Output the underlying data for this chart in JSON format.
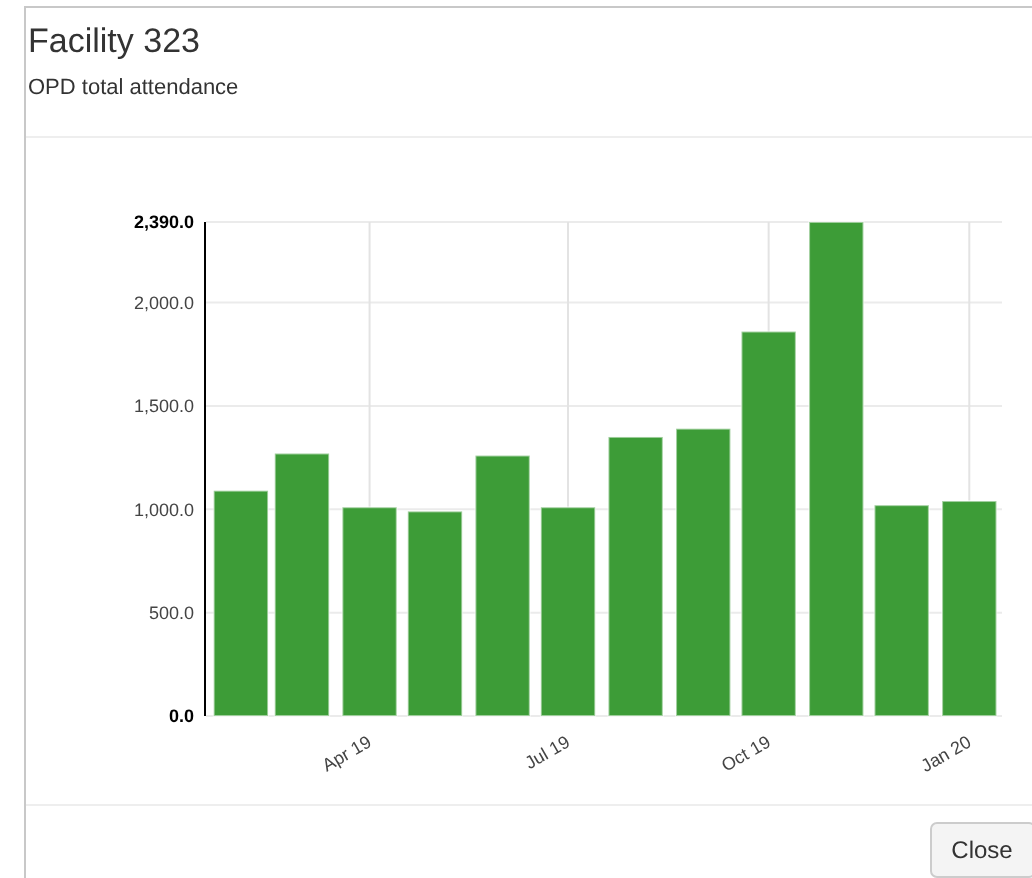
{
  "chart_data": {
    "type": "bar",
    "title": "Facility 323",
    "subtitle": "OPD total attendance",
    "annotations": [
      "Close"
    ],
    "x": [
      "2019-02",
      "2019-03",
      "2019-04",
      "2019-05",
      "2019-06",
      "2019-07",
      "2019-08",
      "2019-09",
      "2019-10",
      "2019-11",
      "2019-12",
      "2020-01"
    ],
    "values": [
      1090,
      1270,
      1010,
      990,
      1260,
      1010,
      1350,
      1390,
      1860,
      2390,
      1020,
      1040
    ],
    "color": "#3d9c37",
    "xlim": [
      "2019-01-16",
      "2020-01-16"
    ],
    "xticks": [
      {
        "value": "2019-04",
        "label": "Apr 19"
      },
      {
        "value": "2019-07",
        "label": "Jul 19"
      },
      {
        "value": "2019-10",
        "label": "Oct 19"
      },
      {
        "value": "2020-01",
        "label": "Jan 20"
      }
    ],
    "ylim": [
      0,
      2390
    ],
    "yticks": [
      {
        "value": 0,
        "label": "0.0"
      },
      {
        "value": 500,
        "label": "500.0"
      },
      {
        "value": 1000,
        "label": "1,000.0"
      },
      {
        "value": 1500,
        "label": "1,500.0"
      },
      {
        "value": 2000,
        "label": "2,000.0"
      },
      {
        "value": 2390,
        "label": "2,390.0"
      }
    ],
    "grid": true
  }
}
